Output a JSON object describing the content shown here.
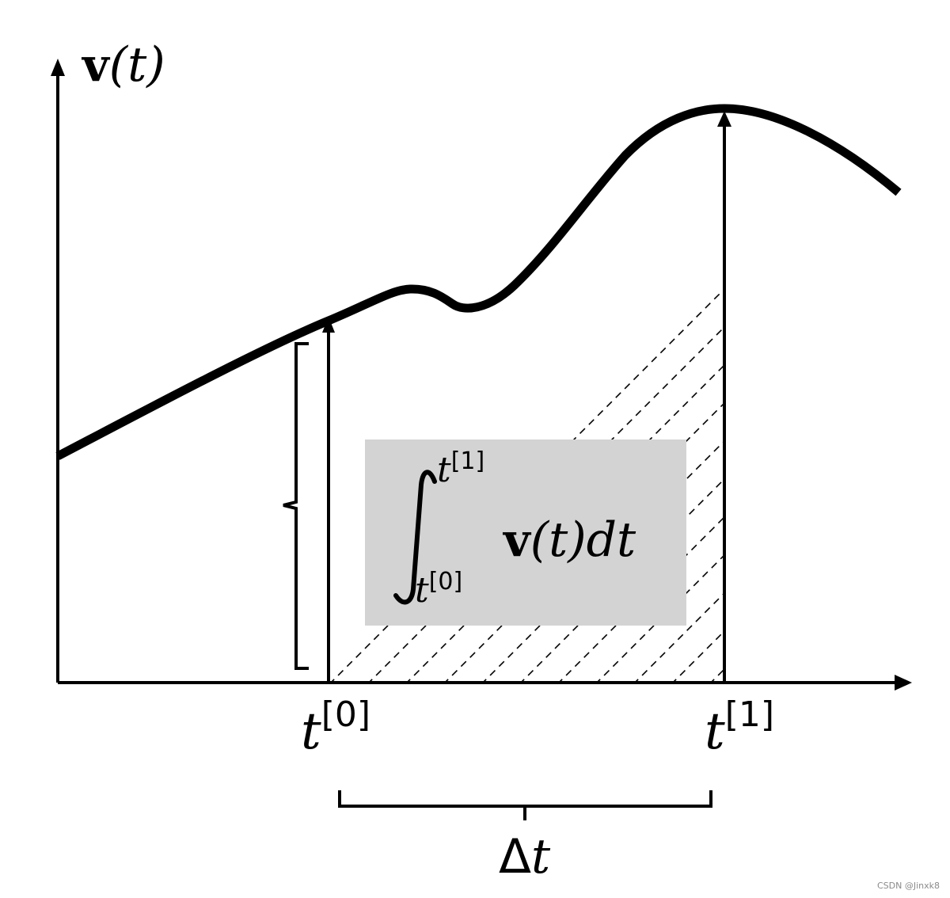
{
  "y_axis_label": {
    "bold": "v",
    "rest": "(t)"
  },
  "x_ticks": [
    {
      "var": "t",
      "sup": "[0]"
    },
    {
      "var": "t",
      "sup": "[1]"
    }
  ],
  "interval_label": {
    "symbol": "Δ",
    "var": "t"
  },
  "integral": {
    "upper": {
      "var": "t",
      "sup": "[1]"
    },
    "lower": {
      "var": "t",
      "sup": "[0]"
    },
    "integrand_bold": "v",
    "integrand_rest": "(t)dt"
  },
  "watermark": "CSDN @Jinxk8",
  "colors": {
    "curve": "#000000",
    "hatch": "#000000",
    "integral_box": "#d3d3d3",
    "watermark": "#8a8a8a"
  }
}
